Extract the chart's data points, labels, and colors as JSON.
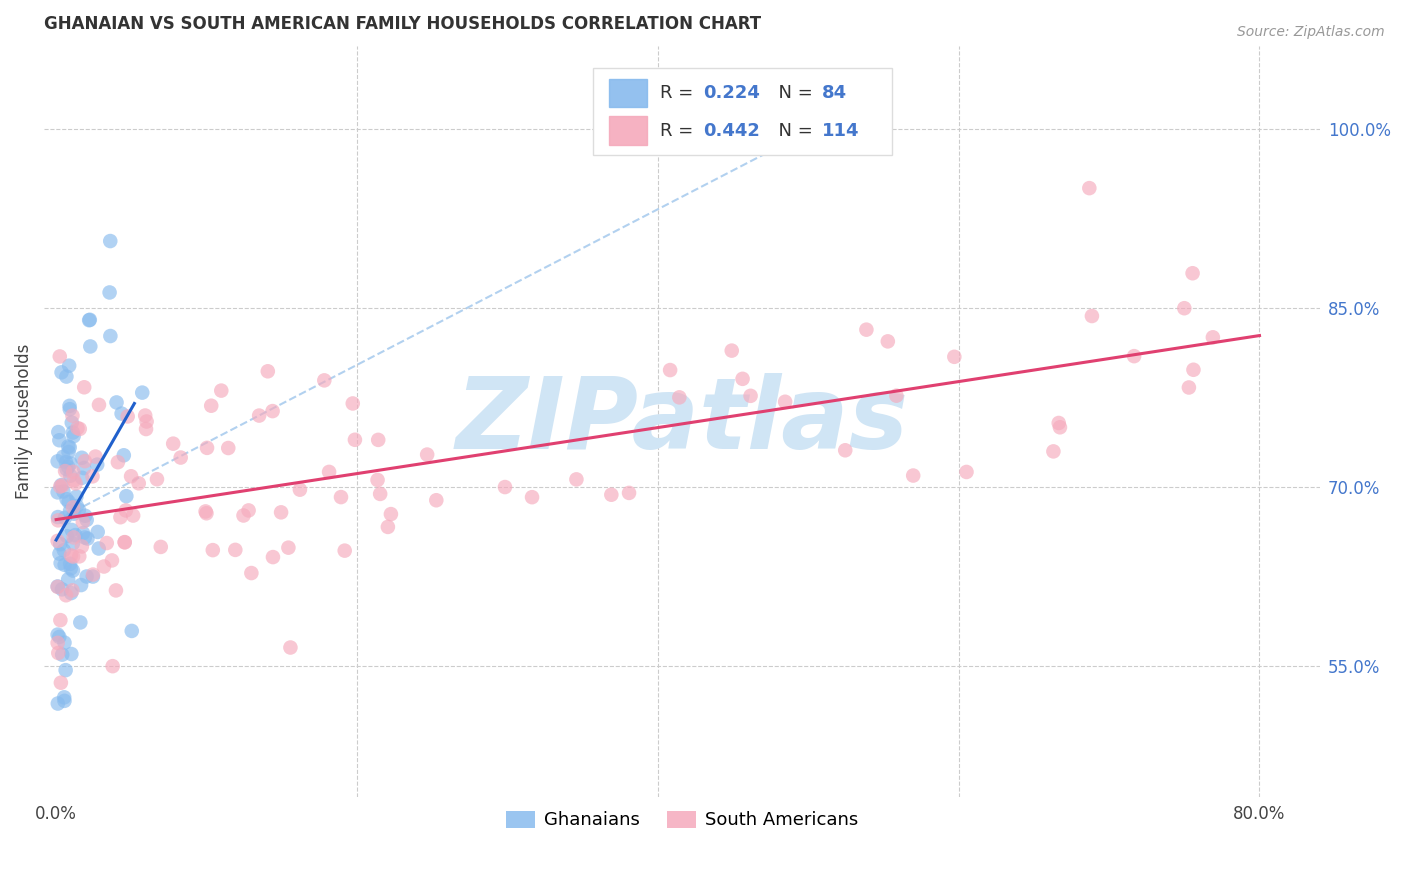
{
  "title": "GHANAIAN VS SOUTH AMERICAN FAMILY HOUSEHOLDS CORRELATION CHART",
  "source": "Source: ZipAtlas.com",
  "ylabel": "Family Households",
  "ytick_labels": [
    "55.0%",
    "70.0%",
    "85.0%",
    "100.0%"
  ],
  "ytick_values": [
    0.55,
    0.7,
    0.85,
    1.0
  ],
  "xtick_labels": [
    "0.0%",
    "80.0%"
  ],
  "xtick_values": [
    0.0,
    0.8
  ],
  "xlim": [
    -0.008,
    0.84
  ],
  "ylim": [
    0.44,
    1.07
  ],
  "ghanaian_color": "#88BBEE",
  "south_american_color": "#F5AABC",
  "trendline_blue_color": "#2060CC",
  "trendline_pink_color": "#E04070",
  "trendline_diagonal_color": "#AACCEE",
  "legend_text_color": "#333333",
  "legend_num_color": "#4477CC",
  "watermark_color": "#D0E5F5",
  "title_fontsize": 12,
  "source_fontsize": 10,
  "tick_fontsize": 12,
  "ylabel_fontsize": 12,
  "legend_fontsize": 13,
  "scatter_size": 110,
  "scatter_alpha": 0.65,
  "grid_color": "#CCCCCC",
  "grid_style": "--",
  "grid_linewidth": 0.8
}
